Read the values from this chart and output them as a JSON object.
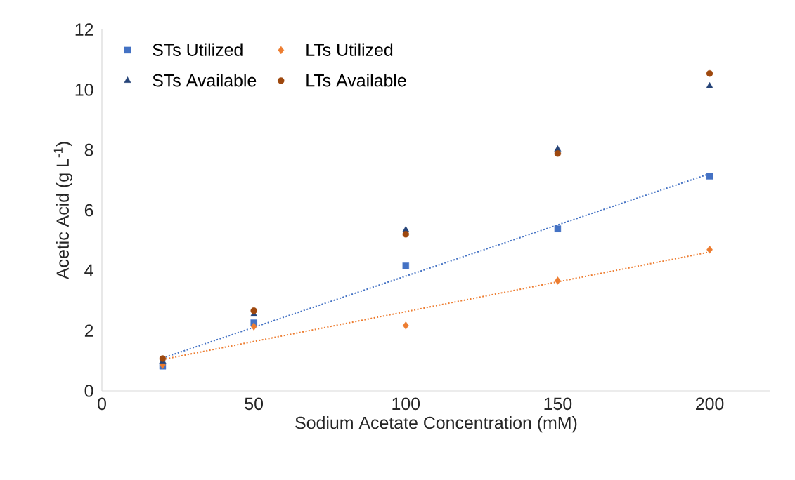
{
  "chart_data": {
    "type": "scatter",
    "xlabel": "Sodium Acetate Concentration (mM)",
    "ylabel": "Acetic Acid (g L$^{-1}$)",
    "x": [
      20,
      50,
      100,
      150,
      200
    ],
    "xlim": [
      0,
      220
    ],
    "xticks": [
      0,
      50,
      100,
      150,
      200
    ],
    "ylim": [
      0,
      12
    ],
    "yticks": [
      0,
      2,
      4,
      6,
      8,
      10,
      12
    ],
    "legend": "top left",
    "series": [
      {
        "name": "STs Utilized",
        "color": "#4472c4",
        "marker": "square",
        "values": [
          0.82,
          2.26,
          4.15,
          5.38,
          7.13
        ]
      },
      {
        "name": "LTs Utilized",
        "color": "#ed7d31",
        "marker": "diamond",
        "values": [
          0.86,
          2.14,
          2.17,
          3.66,
          4.69
        ]
      },
      {
        "name": "STs Available",
        "color": "#264478",
        "marker": "triangle",
        "values": [
          0.98,
          2.54,
          5.34,
          8.02,
          10.12
        ]
      },
      {
        "name": "LTs Available",
        "color": "#9e480e",
        "marker": "circle",
        "values": [
          1.07,
          2.66,
          5.2,
          7.88,
          10.54
        ]
      },
      {
        "type": "line",
        "color": "#4472c4",
        "line_style": "dotted",
        "marker": "none",
        "values": [
          1.09,
          2.11,
          3.81,
          5.51,
          7.21
        ]
      },
      {
        "type": "line",
        "color": "#ed7d31",
        "line_style": "dotted",
        "marker": "none",
        "values": [
          1.04,
          1.64,
          2.63,
          3.62,
          4.61
        ]
      }
    ]
  }
}
